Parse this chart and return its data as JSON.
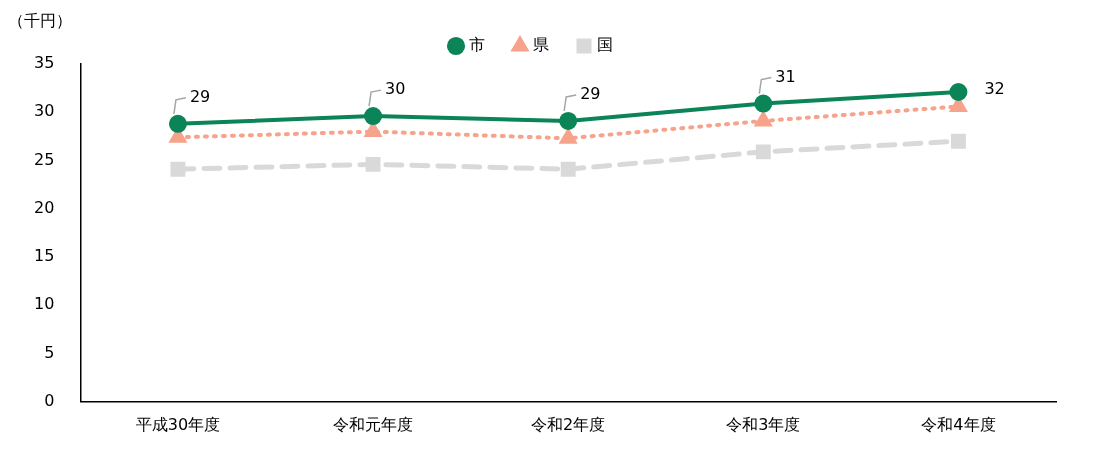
{
  "chart_data": {
    "type": "line",
    "ylabel": "（千円）",
    "categories": [
      "平成30年度",
      "令和元年度",
      "令和2年度",
      "令和3年度",
      "令和4年度"
    ],
    "series": [
      {
        "name": "市",
        "color": "#0b8457",
        "values": [
          28.8,
          29.6,
          29.1,
          30.9,
          32.1
        ],
        "marker": "circle",
        "line_style": "solid",
        "value_labels": [
          "29",
          "30",
          "29",
          "31",
          "32"
        ]
      },
      {
        "name": "県",
        "color": "#f7a38c",
        "values": [
          27.4,
          28.0,
          27.3,
          29.1,
          30.6
        ],
        "marker": "triangle",
        "line_style": "dotted"
      },
      {
        "name": "国",
        "color": "#d9d9d9",
        "values": [
          24.1,
          24.6,
          24.1,
          25.9,
          27.0
        ],
        "marker": "square",
        "line_style": "dashed"
      }
    ],
    "ylim": [
      0,
      35
    ],
    "yticks": [
      0,
      5,
      10,
      15,
      20,
      25,
      30,
      35
    ],
    "grid": false,
    "legend": "top"
  }
}
